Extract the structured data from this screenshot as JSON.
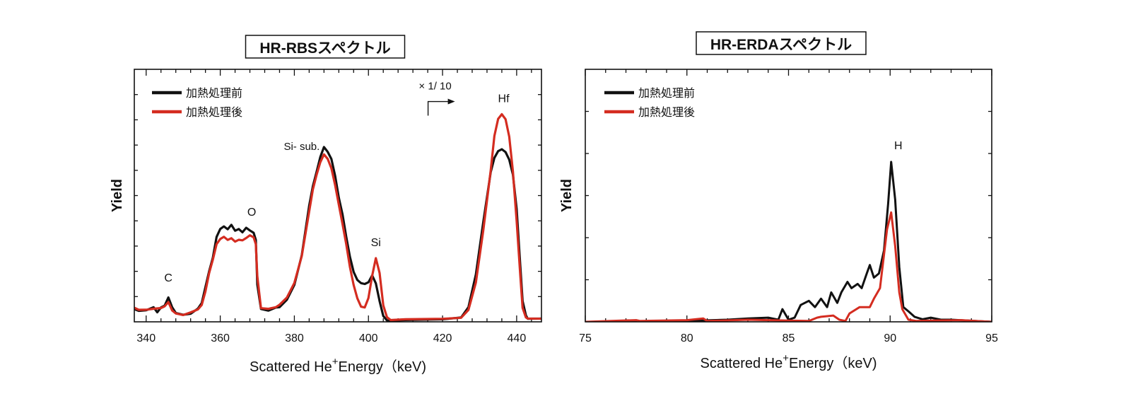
{
  "chart_data": [
    {
      "type": "line",
      "title": "HR-RBSスペクトル",
      "xlabel": {
        "main": "Scattered He",
        "sup": "+",
        "rest": "Energy（keV)"
      },
      "ylabel": "Yield",
      "xlim": [
        336.8,
        446.7
      ],
      "ylim": [
        0,
        10
      ],
      "xticks": [
        340,
        360,
        380,
        400,
        420,
        440
      ],
      "xtick_labels": [
        "340",
        "360",
        "380",
        "400",
        "420",
        "440"
      ],
      "yticks": [
        1,
        2,
        3,
        4,
        5,
        6,
        7,
        8,
        9
      ],
      "legend": {
        "placement": "top-left",
        "entries": [
          "加熱処理前",
          "加熱処理後"
        ]
      },
      "annotations": [
        {
          "text": "C",
          "x": 346,
          "y": 1.6
        },
        {
          "text": "O",
          "x": 368.5,
          "y": 4.2
        },
        {
          "text": "Si- sub.",
          "x": 382,
          "y": 6.8
        },
        {
          "text": "Si",
          "x": 402,
          "y": 3.0
        },
        {
          "text": "Hf",
          "x": 436.5,
          "y": 8.7
        },
        {
          "text": "× 1/ 10",
          "x": 418,
          "y": 9.2
        }
      ],
      "series": [
        {
          "name": "加熱処理前",
          "color": "#111111",
          "x": [
            336.8,
            338,
            340,
            342,
            343,
            344,
            345,
            346,
            347,
            348,
            350,
            352,
            354,
            355,
            356,
            357,
            358,
            359,
            360,
            361,
            362,
            363,
            364,
            365,
            366,
            367,
            368,
            369,
            369.6,
            370,
            371,
            373,
            375,
            376,
            378,
            380,
            382,
            384,
            385,
            386,
            387,
            388,
            389,
            390,
            391,
            392,
            393,
            394,
            395,
            396,
            397,
            398,
            399,
            400,
            401,
            402,
            403,
            404,
            405,
            406,
            410,
            420,
            425,
            427,
            429,
            431,
            433,
            434,
            435,
            436,
            437,
            438,
            439,
            440,
            441,
            441.6,
            442.5,
            443,
            446.7
          ],
          "y": [
            0.5,
            0.4,
            0.4,
            0.5,
            0.3,
            0.5,
            0.6,
            0.95,
            0.6,
            0.4,
            0.35,
            0.4,
            0.6,
            0.8,
            1.4,
            2.0,
            2.5,
            3.3,
            3.6,
            3.7,
            3.6,
            3.8,
            3.6,
            3.7,
            3.6,
            3.8,
            3.7,
            3.6,
            3.3,
            1.5,
            0.5,
            0.4,
            0.5,
            0.5,
            0.8,
            1.4,
            2.6,
            4.6,
            5.4,
            6.0,
            6.6,
            7.0,
            6.8,
            6.5,
            5.8,
            4.9,
            4.2,
            3.3,
            2.5,
            1.9,
            1.6,
            1.5,
            1.5,
            1.6,
            1.9,
            1.6,
            0.9,
            0.3,
            0.1,
            0.05,
            0.05,
            0.05,
            0.1,
            0.5,
            1.8,
            3.9,
            5.9,
            6.5,
            6.8,
            6.9,
            6.8,
            6.5,
            5.9,
            4.5,
            2.2,
            0.8,
            0.2,
            0.05,
            0.05
          ]
        },
        {
          "name": "加熱処理後",
          "color": "#d42c20",
          "x": [
            336.8,
            338,
            340,
            342,
            344,
            345,
            346,
            347,
            348,
            350,
            352,
            354,
            355,
            356,
            357,
            358,
            359,
            360,
            361,
            362,
            363,
            364,
            365,
            366,
            367,
            368,
            369,
            369.6,
            370,
            371,
            373,
            375,
            376,
            378,
            380,
            382,
            384,
            385,
            386,
            387,
            388,
            389,
            390,
            391,
            392,
            393,
            394,
            395,
            396,
            397,
            398,
            399,
            400,
            401,
            402,
            403,
            404,
            405,
            406,
            410,
            420,
            425,
            427,
            429,
            431,
            433,
            434,
            435,
            436,
            437,
            438,
            439,
            440,
            441,
            441.6,
            442.5,
            443,
            446.7
          ],
          "y": [
            0.5,
            0.4,
            0.4,
            0.45,
            0.5,
            0.6,
            0.8,
            0.5,
            0.4,
            0.35,
            0.45,
            0.55,
            0.7,
            1.2,
            1.9,
            2.4,
            3.0,
            3.2,
            3.3,
            3.2,
            3.3,
            3.2,
            3.3,
            3.3,
            3.4,
            3.5,
            3.4,
            3.1,
            1.8,
            0.5,
            0.45,
            0.5,
            0.6,
            0.9,
            1.5,
            2.6,
            4.4,
            5.3,
            5.9,
            6.4,
            6.7,
            6.5,
            6.1,
            5.4,
            4.6,
            3.8,
            3.0,
            2.1,
            1.4,
            0.9,
            0.6,
            0.6,
            1.0,
            1.9,
            2.6,
            2.0,
            0.7,
            0.2,
            0.05,
            0.05,
            0.05,
            0.08,
            0.4,
            1.5,
            3.6,
            6.0,
            7.4,
            8.1,
            8.3,
            8.1,
            7.4,
            6.0,
            4.0,
            1.8,
            0.5,
            0.1,
            0.05,
            0.05
          ]
        }
      ]
    },
    {
      "type": "line",
      "title": "HR-ERDAスペクトル",
      "xlabel": {
        "main": "Scattered He",
        "sup": "+",
        "rest": "Energy（keV)"
      },
      "ylabel": "Yield",
      "xlim": [
        75,
        95
      ],
      "ylim": [
        0,
        6
      ],
      "xticks": [
        75,
        80,
        85,
        90,
        95
      ],
      "xtick_labels": [
        "75",
        "80",
        "85",
        "90",
        "95"
      ],
      "yticks": [
        1,
        2,
        3,
        4,
        5
      ],
      "legend": {
        "placement": "top-left",
        "entries": [
          "加熱処理前",
          "加熱処理後"
        ]
      },
      "annotations": [
        {
          "text": "H",
          "x": 90.4,
          "y": 4.1
        }
      ],
      "series": [
        {
          "name": "加熱処理前",
          "color": "#111111",
          "x": [
            75,
            79,
            80,
            82,
            83,
            84,
            84.5,
            84.7,
            85,
            85.3,
            85.6,
            86,
            86.3,
            86.6,
            86.9,
            87.1,
            87.4,
            87.6,
            87.9,
            88.1,
            88.4,
            88.6,
            88.85,
            89,
            89.2,
            89.45,
            89.7,
            89.9,
            90.05,
            90.25,
            90.45,
            90.65,
            90.9,
            91.2,
            91.6,
            92,
            92.5,
            93,
            95
          ],
          "y": [
            0,
            0,
            0.02,
            0.05,
            0.08,
            0.1,
            0.05,
            0.3,
            0.05,
            0.1,
            0.4,
            0.5,
            0.35,
            0.55,
            0.35,
            0.7,
            0.45,
            0.7,
            0.95,
            0.8,
            0.9,
            0.8,
            1.15,
            1.35,
            1.05,
            1.15,
            1.7,
            2.8,
            3.8,
            2.9,
            1.3,
            0.35,
            0.25,
            0.12,
            0.06,
            0.1,
            0.05,
            0.05,
            0
          ],
          "end": true
        },
        {
          "name": "加熱処理後",
          "color": "#d42c20",
          "x": [
            75,
            77.5,
            77.7,
            80,
            80.8,
            81,
            83,
            85,
            86,
            86.4,
            86.6,
            87.2,
            87.5,
            87.8,
            88,
            88.5,
            89,
            89.2,
            89.5,
            89.7,
            89.85,
            90.05,
            90.25,
            90.45,
            90.6,
            90.9,
            91.3,
            92,
            93.5,
            95
          ],
          "y": [
            0,
            0.04,
            0.02,
            0.04,
            0.08,
            0.02,
            0.05,
            0.03,
            0.02,
            0.1,
            0.12,
            0.15,
            0.05,
            0.02,
            0.2,
            0.35,
            0.35,
            0.55,
            0.8,
            1.6,
            2.2,
            2.6,
            1.8,
            0.7,
            0.3,
            0.05,
            0.02,
            0.03,
            0.04,
            0
          ]
        }
      ]
    }
  ]
}
